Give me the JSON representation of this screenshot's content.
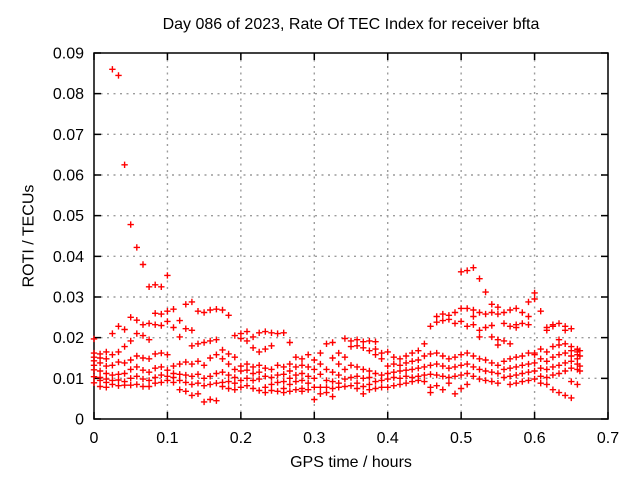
{
  "chart_data": {
    "type": "scatter",
    "title": "Day 086 of 2023, Rate Of TEC Index for receiver bfta",
    "xlabel": "GPS time / hours",
    "ylabel": "ROTI / TECUs",
    "xlim": [
      0,
      0.7
    ],
    "ylim": [
      0,
      0.09
    ],
    "xticks": [
      {
        "value": 0,
        "label": "0"
      },
      {
        "value": 0.1,
        "label": "0.1"
      },
      {
        "value": 0.2,
        "label": "0.2"
      },
      {
        "value": 0.3,
        "label": "0.3"
      },
      {
        "value": 0.4,
        "label": "0.4"
      },
      {
        "value": 0.5,
        "label": "0.5"
      },
      {
        "value": 0.6,
        "label": "0.6"
      },
      {
        "value": 0.7,
        "label": "0.7"
      }
    ],
    "yticks": [
      {
        "value": 0,
        "label": "0"
      },
      {
        "value": 0.01,
        "label": "0.01"
      },
      {
        "value": 0.02,
        "label": "0.02"
      },
      {
        "value": 0.03,
        "label": "0.03"
      },
      {
        "value": 0.04,
        "label": "0.04"
      },
      {
        "value": 0.05,
        "label": "0.05"
      },
      {
        "value": 0.06,
        "label": "0.06"
      },
      {
        "value": 0.07,
        "label": "0.07"
      },
      {
        "value": 0.08,
        "label": "0.08"
      },
      {
        "value": 0.09,
        "label": "0.09"
      }
    ],
    "grid": true,
    "legend": "none",
    "marker": "plus",
    "marker_color": "#ff0000",
    "grid_color": "#9c9c9c",
    "border_color": "#000000",
    "series": [
      {
        "name": "ROTI",
        "epochs": [
          {
            "x": 0.0,
            "ys": [
              0.0197,
              0.0162,
              0.0152,
              0.0143,
              0.0132,
              0.0121,
              0.0104,
              0.0089
            ]
          },
          {
            "x": 0.0083,
            "ys": [
              0.016,
              0.015,
              0.0138,
              0.0118,
              0.0102,
              0.0095,
              0.008
            ]
          },
          {
            "x": 0.0167,
            "ys": [
              0.0165,
              0.0148,
              0.013,
              0.0112,
              0.0098,
              0.009,
              0.0078
            ]
          },
          {
            "x": 0.025,
            "ys": [
              0.086,
              0.021,
              0.0158,
              0.0132,
              0.0108,
              0.0095,
              0.0085
            ]
          },
          {
            "x": 0.0333,
            "ys": [
              0.0845,
              0.0228,
              0.0165,
              0.014,
              0.011,
              0.0096,
              0.0082
            ]
          },
          {
            "x": 0.0417,
            "ys": [
              0.0625,
              0.022,
              0.0178,
              0.0138,
              0.0112,
              0.0092,
              0.0083
            ]
          },
          {
            "x": 0.05,
            "ys": [
              0.0478,
              0.025,
              0.0192,
              0.0145,
              0.0122,
              0.01,
              0.0083
            ]
          },
          {
            "x": 0.0583,
            "ys": [
              0.0422,
              0.0243,
              0.021,
              0.0155,
              0.0128,
              0.0105,
              0.0085
            ]
          },
          {
            "x": 0.0667,
            "ys": [
              0.038,
              0.0232,
              0.0205,
              0.015,
              0.012,
              0.0098,
              0.008
            ]
          },
          {
            "x": 0.075,
            "ys": [
              0.0325,
              0.0235,
              0.0195,
              0.0148,
              0.0115,
              0.0095,
              0.008
            ]
          },
          {
            "x": 0.0833,
            "ys": [
              0.033,
              0.026,
              0.0232,
              0.016,
              0.0125,
              0.0102,
              0.0088
            ]
          },
          {
            "x": 0.0917,
            "ys": [
              0.0325,
              0.0258,
              0.023,
              0.0162,
              0.0128,
              0.0108,
              0.009
            ]
          },
          {
            "x": 0.1,
            "ys": [
              0.0353,
              0.0265,
              0.024,
              0.0158,
              0.012,
              0.0105,
              0.0095
            ]
          },
          {
            "x": 0.1083,
            "ys": [
              0.027,
              0.0225,
              0.013,
              0.0112,
              0.0102,
              0.009
            ]
          },
          {
            "x": 0.1167,
            "ys": [
              0.0242,
              0.0202,
              0.0135,
              0.011,
              0.0095,
              0.0072
            ]
          },
          {
            "x": 0.125,
            "ys": [
              0.0282,
              0.0222,
              0.014,
              0.0108,
              0.009,
              0.0068
            ]
          },
          {
            "x": 0.1333,
            "ys": [
              0.0288,
              0.0218,
              0.018,
              0.0135,
              0.0105,
              0.0085,
              0.0058
            ]
          },
          {
            "x": 0.1417,
            "ys": [
              0.0265,
              0.0185,
              0.0142,
              0.011,
              0.0088,
              0.0062
            ]
          },
          {
            "x": 0.15,
            "ys": [
              0.0262,
              0.0188,
              0.0132,
              0.01,
              0.0082,
              0.0042
            ]
          },
          {
            "x": 0.1583,
            "ys": [
              0.0268,
              0.0192,
              0.015,
              0.0105,
              0.0085,
              0.0048
            ]
          },
          {
            "x": 0.1667,
            "ys": [
              0.027,
              0.0195,
              0.0158,
              0.0112,
              0.0088,
              0.0045
            ]
          },
          {
            "x": 0.175,
            "ys": [
              0.0268,
              0.017,
              0.0148,
              0.0115,
              0.009,
              0.008
            ]
          },
          {
            "x": 0.1833,
            "ys": [
              0.0255,
              0.016,
              0.0135,
              0.0108,
              0.0092,
              0.0075
            ]
          },
          {
            "x": 0.1917,
            "ys": [
              0.0205,
              0.0152,
              0.0122,
              0.0102,
              0.0088,
              0.0072
            ]
          },
          {
            "x": 0.2,
            "ys": [
              0.021,
              0.0198,
              0.013,
              0.0118,
              0.0095,
              0.0078
            ]
          },
          {
            "x": 0.2083,
            "ys": [
              0.0215,
              0.0192,
              0.0135,
              0.012,
              0.01,
              0.0082
            ]
          },
          {
            "x": 0.2167,
            "ys": [
              0.0202,
              0.0175,
              0.0128,
              0.0112,
              0.0095,
              0.0075
            ]
          },
          {
            "x": 0.225,
            "ys": [
              0.0212,
              0.0165,
              0.0132,
              0.0115,
              0.0098,
              0.007
            ]
          },
          {
            "x": 0.2333,
            "ys": [
              0.0215,
              0.0172,
              0.0125,
              0.0105,
              0.0078,
              0.0065
            ]
          },
          {
            "x": 0.2417,
            "ys": [
              0.0212,
              0.018,
              0.0122,
              0.0102,
              0.0085,
              0.007
            ]
          },
          {
            "x": 0.25,
            "ys": [
              0.021,
              0.0132,
              0.0108,
              0.009,
              0.0068
            ]
          },
          {
            "x": 0.2583,
            "ys": [
              0.0212,
              0.0128,
              0.011,
              0.0092,
              0.0075,
              0.0065
            ]
          },
          {
            "x": 0.2667,
            "ys": [
              0.0188,
              0.0135,
              0.0118,
              0.01,
              0.0085,
              0.0068
            ]
          },
          {
            "x": 0.275,
            "ys": [
              0.0152,
              0.0128,
              0.0108,
              0.0092,
              0.0072
            ]
          },
          {
            "x": 0.2833,
            "ys": [
              0.0148,
              0.0132,
              0.0112,
              0.0095,
              0.0075,
              0.0068
            ]
          },
          {
            "x": 0.2917,
            "ys": [
              0.0158,
              0.0128,
              0.0105,
              0.0088,
              0.0072
            ]
          },
          {
            "x": 0.3,
            "ys": [
              0.0145,
              0.0122,
              0.01,
              0.0078,
              0.0048
            ]
          },
          {
            "x": 0.3083,
            "ys": [
              0.0162,
              0.0135,
              0.011,
              0.0078,
              0.0062
            ]
          },
          {
            "x": 0.3167,
            "ys": [
              0.0185,
              0.0122,
              0.0095,
              0.0078,
              0.0065
            ]
          },
          {
            "x": 0.325,
            "ys": [
              0.0188,
              0.015,
              0.0115,
              0.0092,
              0.0075,
              0.0055
            ]
          },
          {
            "x": 0.3333,
            "ys": [
              0.0162,
              0.0135,
              0.0108,
              0.0088,
              0.0078
            ]
          },
          {
            "x": 0.3417,
            "ys": [
              0.0198,
              0.0152,
              0.0122,
              0.0098,
              0.008
            ]
          },
          {
            "x": 0.35,
            "ys": [
              0.0192,
              0.0178,
              0.0132,
              0.0102,
              0.0082
            ]
          },
          {
            "x": 0.3583,
            "ys": [
              0.0195,
              0.018,
              0.0128,
              0.0105,
              0.0088,
              0.0075
            ]
          },
          {
            "x": 0.3667,
            "ys": [
              0.019,
              0.0175,
              0.0122,
              0.01,
              0.008,
              0.0062
            ]
          },
          {
            "x": 0.375,
            "ys": [
              0.0192,
              0.0168,
              0.0118,
              0.0102,
              0.0085,
              0.0072
            ]
          },
          {
            "x": 0.3833,
            "ys": [
              0.019,
              0.0172,
              0.0158,
              0.0112,
              0.0092,
              0.0075
            ]
          },
          {
            "x": 0.3917,
            "ys": [
              0.0162,
              0.0148,
              0.0108,
              0.0095,
              0.0078
            ]
          },
          {
            "x": 0.4,
            "ys": [
              0.0165,
              0.013,
              0.0112,
              0.0098,
              0.0078
            ]
          },
          {
            "x": 0.4083,
            "ys": [
              0.0152,
              0.0135,
              0.0115,
              0.0102,
              0.0082
            ]
          },
          {
            "x": 0.4167,
            "ys": [
              0.0148,
              0.0132,
              0.0118,
              0.01,
              0.0085
            ]
          },
          {
            "x": 0.425,
            "ys": [
              0.0155,
              0.0138,
              0.012,
              0.0105,
              0.0088
            ]
          },
          {
            "x": 0.4333,
            "ys": [
              0.0162,
              0.0142,
              0.0122,
              0.0102,
              0.0092
            ]
          },
          {
            "x": 0.4417,
            "ys": [
              0.0168,
              0.0145,
              0.0125,
              0.0105,
              0.0095
            ]
          },
          {
            "x": 0.45,
            "ys": [
              0.0185,
              0.0155,
              0.0128,
              0.0108,
              0.0092
            ]
          },
          {
            "x": 0.4583,
            "ys": [
              0.0228,
              0.016,
              0.0132,
              0.011,
              0.0078,
              0.0065
            ]
          },
          {
            "x": 0.4667,
            "ys": [
              0.0252,
              0.0238,
              0.0162,
              0.0135,
              0.0108,
              0.0082
            ]
          },
          {
            "x": 0.475,
            "ys": [
              0.0258,
              0.0242,
              0.0155,
              0.013,
              0.0105,
              0.0072
            ]
          },
          {
            "x": 0.4833,
            "ys": [
              0.0255,
              0.0245,
              0.0148,
              0.0125,
              0.0102,
              0.0088
            ]
          },
          {
            "x": 0.4917,
            "ys": [
              0.0262,
              0.0235,
              0.0152,
              0.0128,
              0.0105,
              0.0062
            ]
          },
          {
            "x": 0.5,
            "ys": [
              0.0362,
              0.0272,
              0.024,
              0.0158,
              0.0132,
              0.0108,
              0.0075
            ]
          },
          {
            "x": 0.5083,
            "ys": [
              0.0365,
              0.0272,
              0.0228,
              0.0162,
              0.0135,
              0.0112,
              0.0085
            ]
          },
          {
            "x": 0.5167,
            "ys": [
              0.0372,
              0.0268,
              0.0252,
              0.0232,
              0.0155,
              0.0128,
              0.0105
            ]
          },
          {
            "x": 0.525,
            "ys": [
              0.0345,
              0.0262,
              0.0218,
              0.0202,
              0.0148,
              0.0122,
              0.0098
            ]
          },
          {
            "x": 0.5333,
            "ys": [
              0.0312,
              0.0258,
              0.0225,
              0.0145,
              0.0118,
              0.0095
            ]
          },
          {
            "x": 0.5417,
            "ys": [
              0.0282,
              0.0262,
              0.023,
              0.0202,
              0.0138,
              0.0115,
              0.0092
            ]
          },
          {
            "x": 0.55,
            "ys": [
              0.0275,
              0.0258,
              0.0195,
              0.0182,
              0.0132,
              0.0112,
              0.0088
            ]
          },
          {
            "x": 0.5583,
            "ys": [
              0.0262,
              0.0235,
              0.0192,
              0.0142,
              0.0122,
              0.0102
            ]
          },
          {
            "x": 0.5667,
            "ys": [
              0.0268,
              0.0228,
              0.0185,
              0.0148,
              0.0125,
              0.0105,
              0.0085
            ]
          },
          {
            "x": 0.575,
            "ys": [
              0.0272,
              0.0232,
              0.0225,
              0.0152,
              0.0128,
              0.0108,
              0.0088
            ]
          },
          {
            "x": 0.5833,
            "ys": [
              0.0262,
              0.0235,
              0.0155,
              0.0132,
              0.0112,
              0.0092
            ]
          },
          {
            "x": 0.5917,
            "ys": [
              0.0288,
              0.0252,
              0.0232,
              0.0162,
              0.0135,
              0.0115,
              0.0095
            ]
          },
          {
            "x": 0.6,
            "ys": [
              0.031,
              0.0295,
              0.0162,
              0.0158,
              0.0138,
              0.0118,
              0.0098
            ]
          },
          {
            "x": 0.6083,
            "ys": [
              0.0265,
              0.0172,
              0.0148,
              0.0125,
              0.0105,
              0.0088
            ]
          },
          {
            "x": 0.6167,
            "ys": [
              0.0225,
              0.0218,
              0.0165,
              0.0142,
              0.0122,
              0.0102,
              0.0085
            ]
          },
          {
            "x": 0.625,
            "ys": [
              0.0228,
              0.0232,
              0.0178,
              0.0152,
              0.0128,
              0.0108,
              0.0072
            ]
          },
          {
            "x": 0.6333,
            "ys": [
              0.0235,
              0.0195,
              0.0182,
              0.0158,
              0.0132,
              0.0112,
              0.0065
            ]
          },
          {
            "x": 0.6417,
            "ys": [
              0.0228,
              0.0218,
              0.0185,
              0.0162,
              0.0138,
              0.0118,
              0.0058
            ]
          },
          {
            "x": 0.65,
            "ys": [
              0.0222,
              0.0178,
              0.0168,
              0.0155,
              0.0142,
              0.0125,
              0.0092,
              0.0052
            ]
          },
          {
            "x": 0.6583,
            "ys": [
              0.0172,
              0.017,
              0.0165,
              0.0158,
              0.0148,
              0.0135,
              0.0122,
              0.0085
            ]
          },
          {
            "x": 0.6617,
            "ys": [
              0.0168,
              0.0155,
              0.013,
              0.0118
            ]
          }
        ]
      }
    ]
  }
}
